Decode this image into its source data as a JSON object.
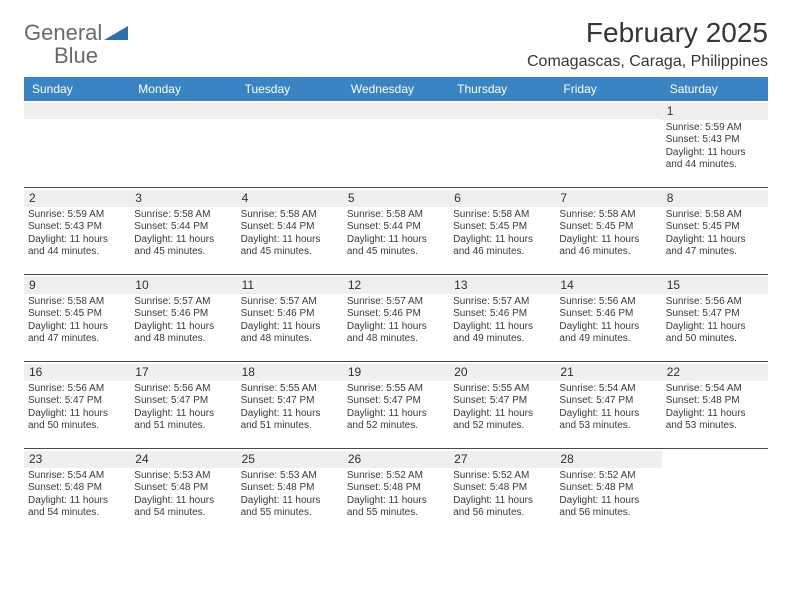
{
  "brand": {
    "word1": "General",
    "word2": "Blue"
  },
  "title": "February 2025",
  "location": "Comagascas, Caraga, Philippines",
  "colors": {
    "header_bg": "#3a84c4",
    "header_text": "#ffffff",
    "daynum_bg": "#efefef",
    "week_border": "#414c5a",
    "title_color": "#363636",
    "text_color": "#3a3a3a",
    "logo_gray": "#6a6a6a",
    "logo_blue": "#2f6fa8"
  },
  "dow": [
    "Sunday",
    "Monday",
    "Tuesday",
    "Wednesday",
    "Thursday",
    "Friday",
    "Saturday"
  ],
  "first_weekday_index": 6,
  "days": [
    {
      "n": 1,
      "sunrise": "5:59 AM",
      "sunset": "5:43 PM",
      "daylight": "11 hours and 44 minutes."
    },
    {
      "n": 2,
      "sunrise": "5:59 AM",
      "sunset": "5:43 PM",
      "daylight": "11 hours and 44 minutes."
    },
    {
      "n": 3,
      "sunrise": "5:58 AM",
      "sunset": "5:44 PM",
      "daylight": "11 hours and 45 minutes."
    },
    {
      "n": 4,
      "sunrise": "5:58 AM",
      "sunset": "5:44 PM",
      "daylight": "11 hours and 45 minutes."
    },
    {
      "n": 5,
      "sunrise": "5:58 AM",
      "sunset": "5:44 PM",
      "daylight": "11 hours and 45 minutes."
    },
    {
      "n": 6,
      "sunrise": "5:58 AM",
      "sunset": "5:45 PM",
      "daylight": "11 hours and 46 minutes."
    },
    {
      "n": 7,
      "sunrise": "5:58 AM",
      "sunset": "5:45 PM",
      "daylight": "11 hours and 46 minutes."
    },
    {
      "n": 8,
      "sunrise": "5:58 AM",
      "sunset": "5:45 PM",
      "daylight": "11 hours and 47 minutes."
    },
    {
      "n": 9,
      "sunrise": "5:58 AM",
      "sunset": "5:45 PM",
      "daylight": "11 hours and 47 minutes."
    },
    {
      "n": 10,
      "sunrise": "5:57 AM",
      "sunset": "5:46 PM",
      "daylight": "11 hours and 48 minutes."
    },
    {
      "n": 11,
      "sunrise": "5:57 AM",
      "sunset": "5:46 PM",
      "daylight": "11 hours and 48 minutes."
    },
    {
      "n": 12,
      "sunrise": "5:57 AM",
      "sunset": "5:46 PM",
      "daylight": "11 hours and 48 minutes."
    },
    {
      "n": 13,
      "sunrise": "5:57 AM",
      "sunset": "5:46 PM",
      "daylight": "11 hours and 49 minutes."
    },
    {
      "n": 14,
      "sunrise": "5:56 AM",
      "sunset": "5:46 PM",
      "daylight": "11 hours and 49 minutes."
    },
    {
      "n": 15,
      "sunrise": "5:56 AM",
      "sunset": "5:47 PM",
      "daylight": "11 hours and 50 minutes."
    },
    {
      "n": 16,
      "sunrise": "5:56 AM",
      "sunset": "5:47 PM",
      "daylight": "11 hours and 50 minutes."
    },
    {
      "n": 17,
      "sunrise": "5:56 AM",
      "sunset": "5:47 PM",
      "daylight": "11 hours and 51 minutes."
    },
    {
      "n": 18,
      "sunrise": "5:55 AM",
      "sunset": "5:47 PM",
      "daylight": "11 hours and 51 minutes."
    },
    {
      "n": 19,
      "sunrise": "5:55 AM",
      "sunset": "5:47 PM",
      "daylight": "11 hours and 52 minutes."
    },
    {
      "n": 20,
      "sunrise": "5:55 AM",
      "sunset": "5:47 PM",
      "daylight": "11 hours and 52 minutes."
    },
    {
      "n": 21,
      "sunrise": "5:54 AM",
      "sunset": "5:47 PM",
      "daylight": "11 hours and 53 minutes."
    },
    {
      "n": 22,
      "sunrise": "5:54 AM",
      "sunset": "5:48 PM",
      "daylight": "11 hours and 53 minutes."
    },
    {
      "n": 23,
      "sunrise": "5:54 AM",
      "sunset": "5:48 PM",
      "daylight": "11 hours and 54 minutes."
    },
    {
      "n": 24,
      "sunrise": "5:53 AM",
      "sunset": "5:48 PM",
      "daylight": "11 hours and 54 minutes."
    },
    {
      "n": 25,
      "sunrise": "5:53 AM",
      "sunset": "5:48 PM",
      "daylight": "11 hours and 55 minutes."
    },
    {
      "n": 26,
      "sunrise": "5:52 AM",
      "sunset": "5:48 PM",
      "daylight": "11 hours and 55 minutes."
    },
    {
      "n": 27,
      "sunrise": "5:52 AM",
      "sunset": "5:48 PM",
      "daylight": "11 hours and 56 minutes."
    },
    {
      "n": 28,
      "sunrise": "5:52 AM",
      "sunset": "5:48 PM",
      "daylight": "11 hours and 56 minutes."
    }
  ],
  "labels": {
    "sunrise": "Sunrise: ",
    "sunset": "Sunset: ",
    "daylight": "Daylight: "
  }
}
